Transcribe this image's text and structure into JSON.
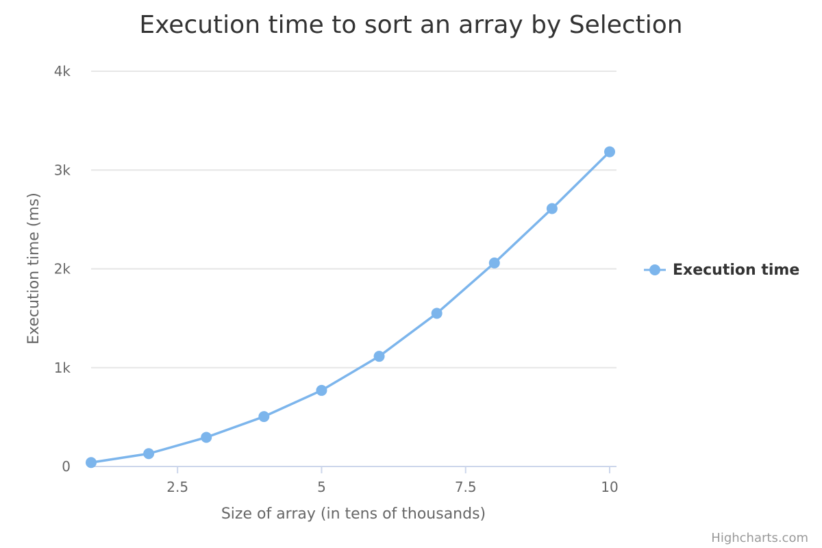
{
  "chart_data": {
    "type": "line",
    "title": "Execution time to sort an array by Selection",
    "xlabel": "Size of array (in tens of thousands)",
    "ylabel": "Execution time (ms)",
    "xlim": [
      1,
      10
    ],
    "ylim": [
      0,
      4000
    ],
    "x_ticks": [
      2.5,
      5,
      7.5,
      10
    ],
    "x_tick_labels": [
      "2.5",
      "5",
      "7.5",
      "10"
    ],
    "y_ticks": [
      0,
      1000,
      2000,
      3000,
      4000
    ],
    "y_tick_labels": [
      "0",
      "1k",
      "2k",
      "3k",
      "4k"
    ],
    "grid": true,
    "legend_position": "right",
    "series": [
      {
        "name": "Execution time",
        "color": "#7cb5ec",
        "x": [
          1,
          2,
          3,
          4,
          5,
          6,
          7,
          8,
          9,
          10
        ],
        "values": [
          40,
          130,
          295,
          505,
          770,
          1115,
          1550,
          2060,
          2610,
          3185
        ]
      }
    ]
  },
  "credits": "Highcharts.com"
}
